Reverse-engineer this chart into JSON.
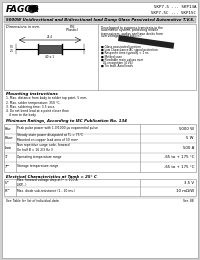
{
  "bg_color": "#f2f2f2",
  "page_bg": "#ffffff",
  "logo_text": "FAGOR",
  "part_numbers_right": "5KP7.5 ... 5KP13A\n5KP7.5C ... 5KP15C",
  "title": "5000W Unidirectional and Bidirectional load Dump Glass Passivated Automotive T.V.S.",
  "ratings_title": "Minimum Ratings, According to IEC Publication No. 134",
  "ratings": [
    {
      "symbol": "Pᴘᴘ",
      "description": "Peak pulse power with 1.0/1000 μs exponential pulse",
      "value": "5000 W"
    },
    {
      "symbol": "Pᴘᴘᴘ",
      "description": "Steady state power dissipated at TL = 75°C\nMounted on copper lead area of 50 mm²",
      "value": "5 W"
    },
    {
      "symbol": "Iᴘᴘᴘ",
      "description": "Non repetitive surge code, forward\nOn half B = 16 2/3 Hz 3",
      "value": "500 A"
    },
    {
      "symbol": "Tⱼ",
      "description": "Operating temperature range",
      "value": "-65 to + 175 °C"
    },
    {
      "symbol": "Tᴵᴳ",
      "description": "Storage temperature range",
      "value": "-65 to + 175 °C"
    }
  ],
  "elec_title": "Electrical Characteristics at Tamb = 25° C",
  "elec": [
    {
      "symbol": "Vᴹ",
      "description": "Max. forward voltage drop at Iᴹ = 100 A\n(5KP...)",
      "value": "3.5 V"
    },
    {
      "symbol": "Rᴵᴳ",
      "description": "Max. diode sub-resistance (1 - 10 ms.)",
      "value": "10 mΩ/W"
    }
  ],
  "mount_title": "Mounting instructions",
  "mount_items": [
    "1. Max. distance from body to solder top point, 5 mm.",
    "2. Max. solder temperature: 350 °C.",
    "3. Max. soldering time: 3.5 secs.",
    "4. Do not bend lead at a point closer than",
    "   4 mm to the body."
  ],
  "features_intro": [
    "Developped to suppress transients in the",
    "automotive system, protecting mobile",
    "transceivers, radios and tape decks from",
    "overvoltages (load pulses)."
  ],
  "bullet_items": [
    "Glass passivated junction",
    "Low Capacitance AC signal protection",
    "Response time typically < 1 ns",
    "Molded case",
    "Floodable resin values over",
    "  UL recognition (4 V4)",
    "Tin lead. Axial leads"
  ],
  "footer": "See Table for list of individual data",
  "page_num": "Ser. 88"
}
